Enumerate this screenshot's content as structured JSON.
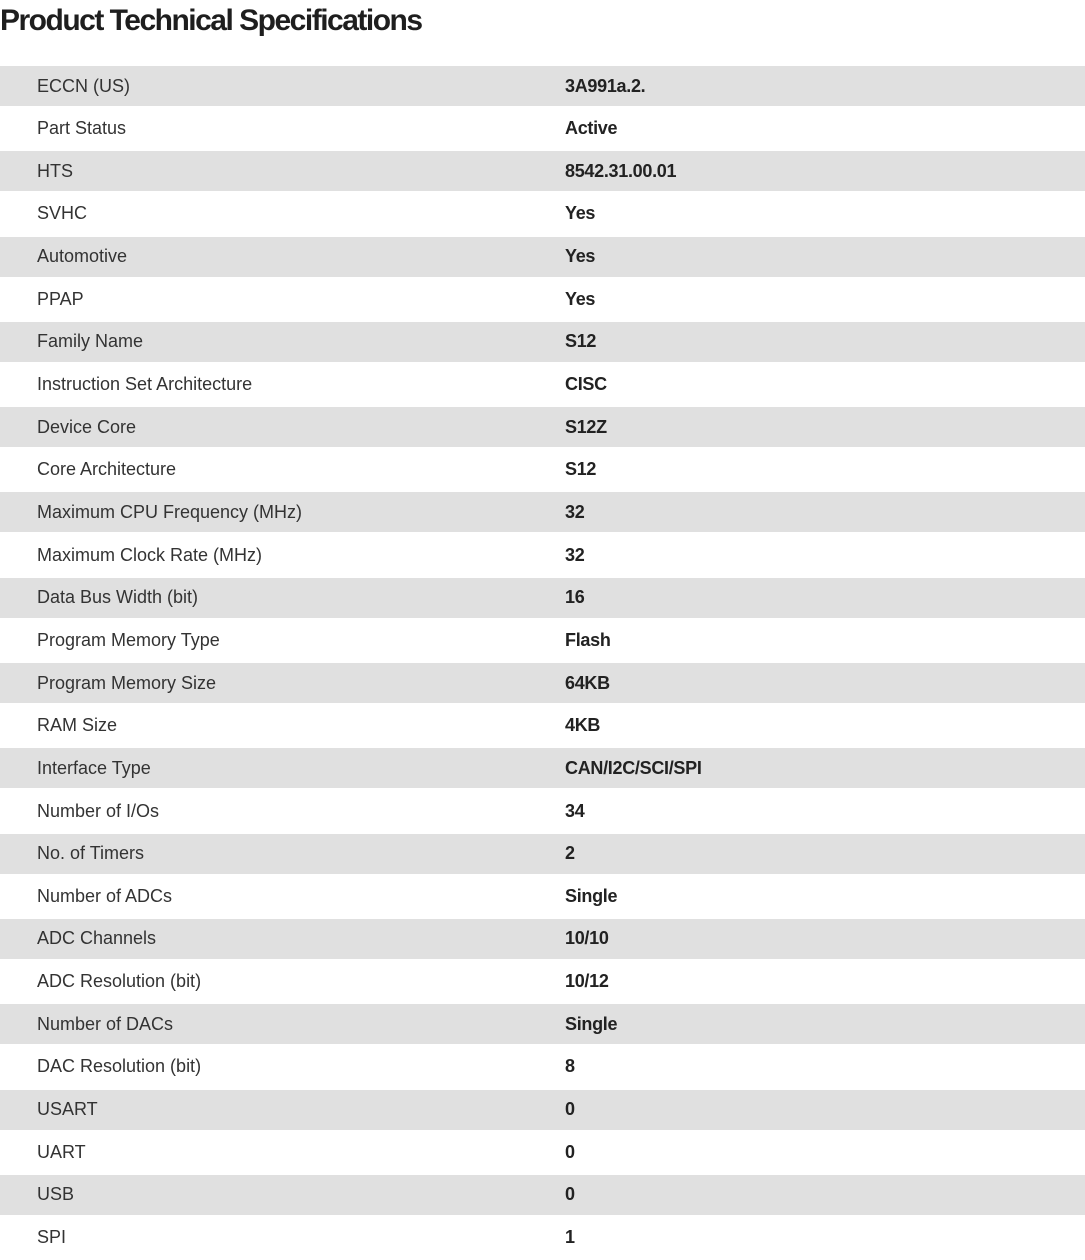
{
  "title": "Product Technical Specifications",
  "specs": [
    {
      "label": "ECCN (US)",
      "value": "3A991a.2."
    },
    {
      "label": "Part Status",
      "value": "Active"
    },
    {
      "label": "HTS",
      "value": "8542.31.00.01"
    },
    {
      "label": "SVHC",
      "value": "Yes"
    },
    {
      "label": "Automotive",
      "value": "Yes"
    },
    {
      "label": "PPAP",
      "value": "Yes"
    },
    {
      "label": "Family Name",
      "value": "S12"
    },
    {
      "label": "Instruction Set Architecture",
      "value": "CISC"
    },
    {
      "label": "Device Core",
      "value": "S12Z"
    },
    {
      "label": "Core Architecture",
      "value": "S12"
    },
    {
      "label": "Maximum CPU Frequency (MHz)",
      "value": "32"
    },
    {
      "label": "Maximum Clock Rate (MHz)",
      "value": "32"
    },
    {
      "label": "Data Bus Width (bit)",
      "value": "16"
    },
    {
      "label": "Program Memory Type",
      "value": "Flash"
    },
    {
      "label": "Program Memory Size",
      "value": "64KB"
    },
    {
      "label": "RAM Size",
      "value": "4KB"
    },
    {
      "label": "Interface Type",
      "value": "CAN/I2C/SCI/SPI"
    },
    {
      "label": "Number of I/Os",
      "value": "34"
    },
    {
      "label": "No. of Timers",
      "value": "2"
    },
    {
      "label": "Number of ADCs",
      "value": "Single"
    },
    {
      "label": "ADC Channels",
      "value": "10/10"
    },
    {
      "label": "ADC Resolution (bit)",
      "value": "10/12"
    },
    {
      "label": "Number of DACs",
      "value": "Single"
    },
    {
      "label": "DAC Resolution (bit)",
      "value": "8"
    },
    {
      "label": "USART",
      "value": "0"
    },
    {
      "label": "UART",
      "value": "0"
    },
    {
      "label": "USB",
      "value": "0"
    },
    {
      "label": "SPI",
      "value": "1"
    }
  ]
}
